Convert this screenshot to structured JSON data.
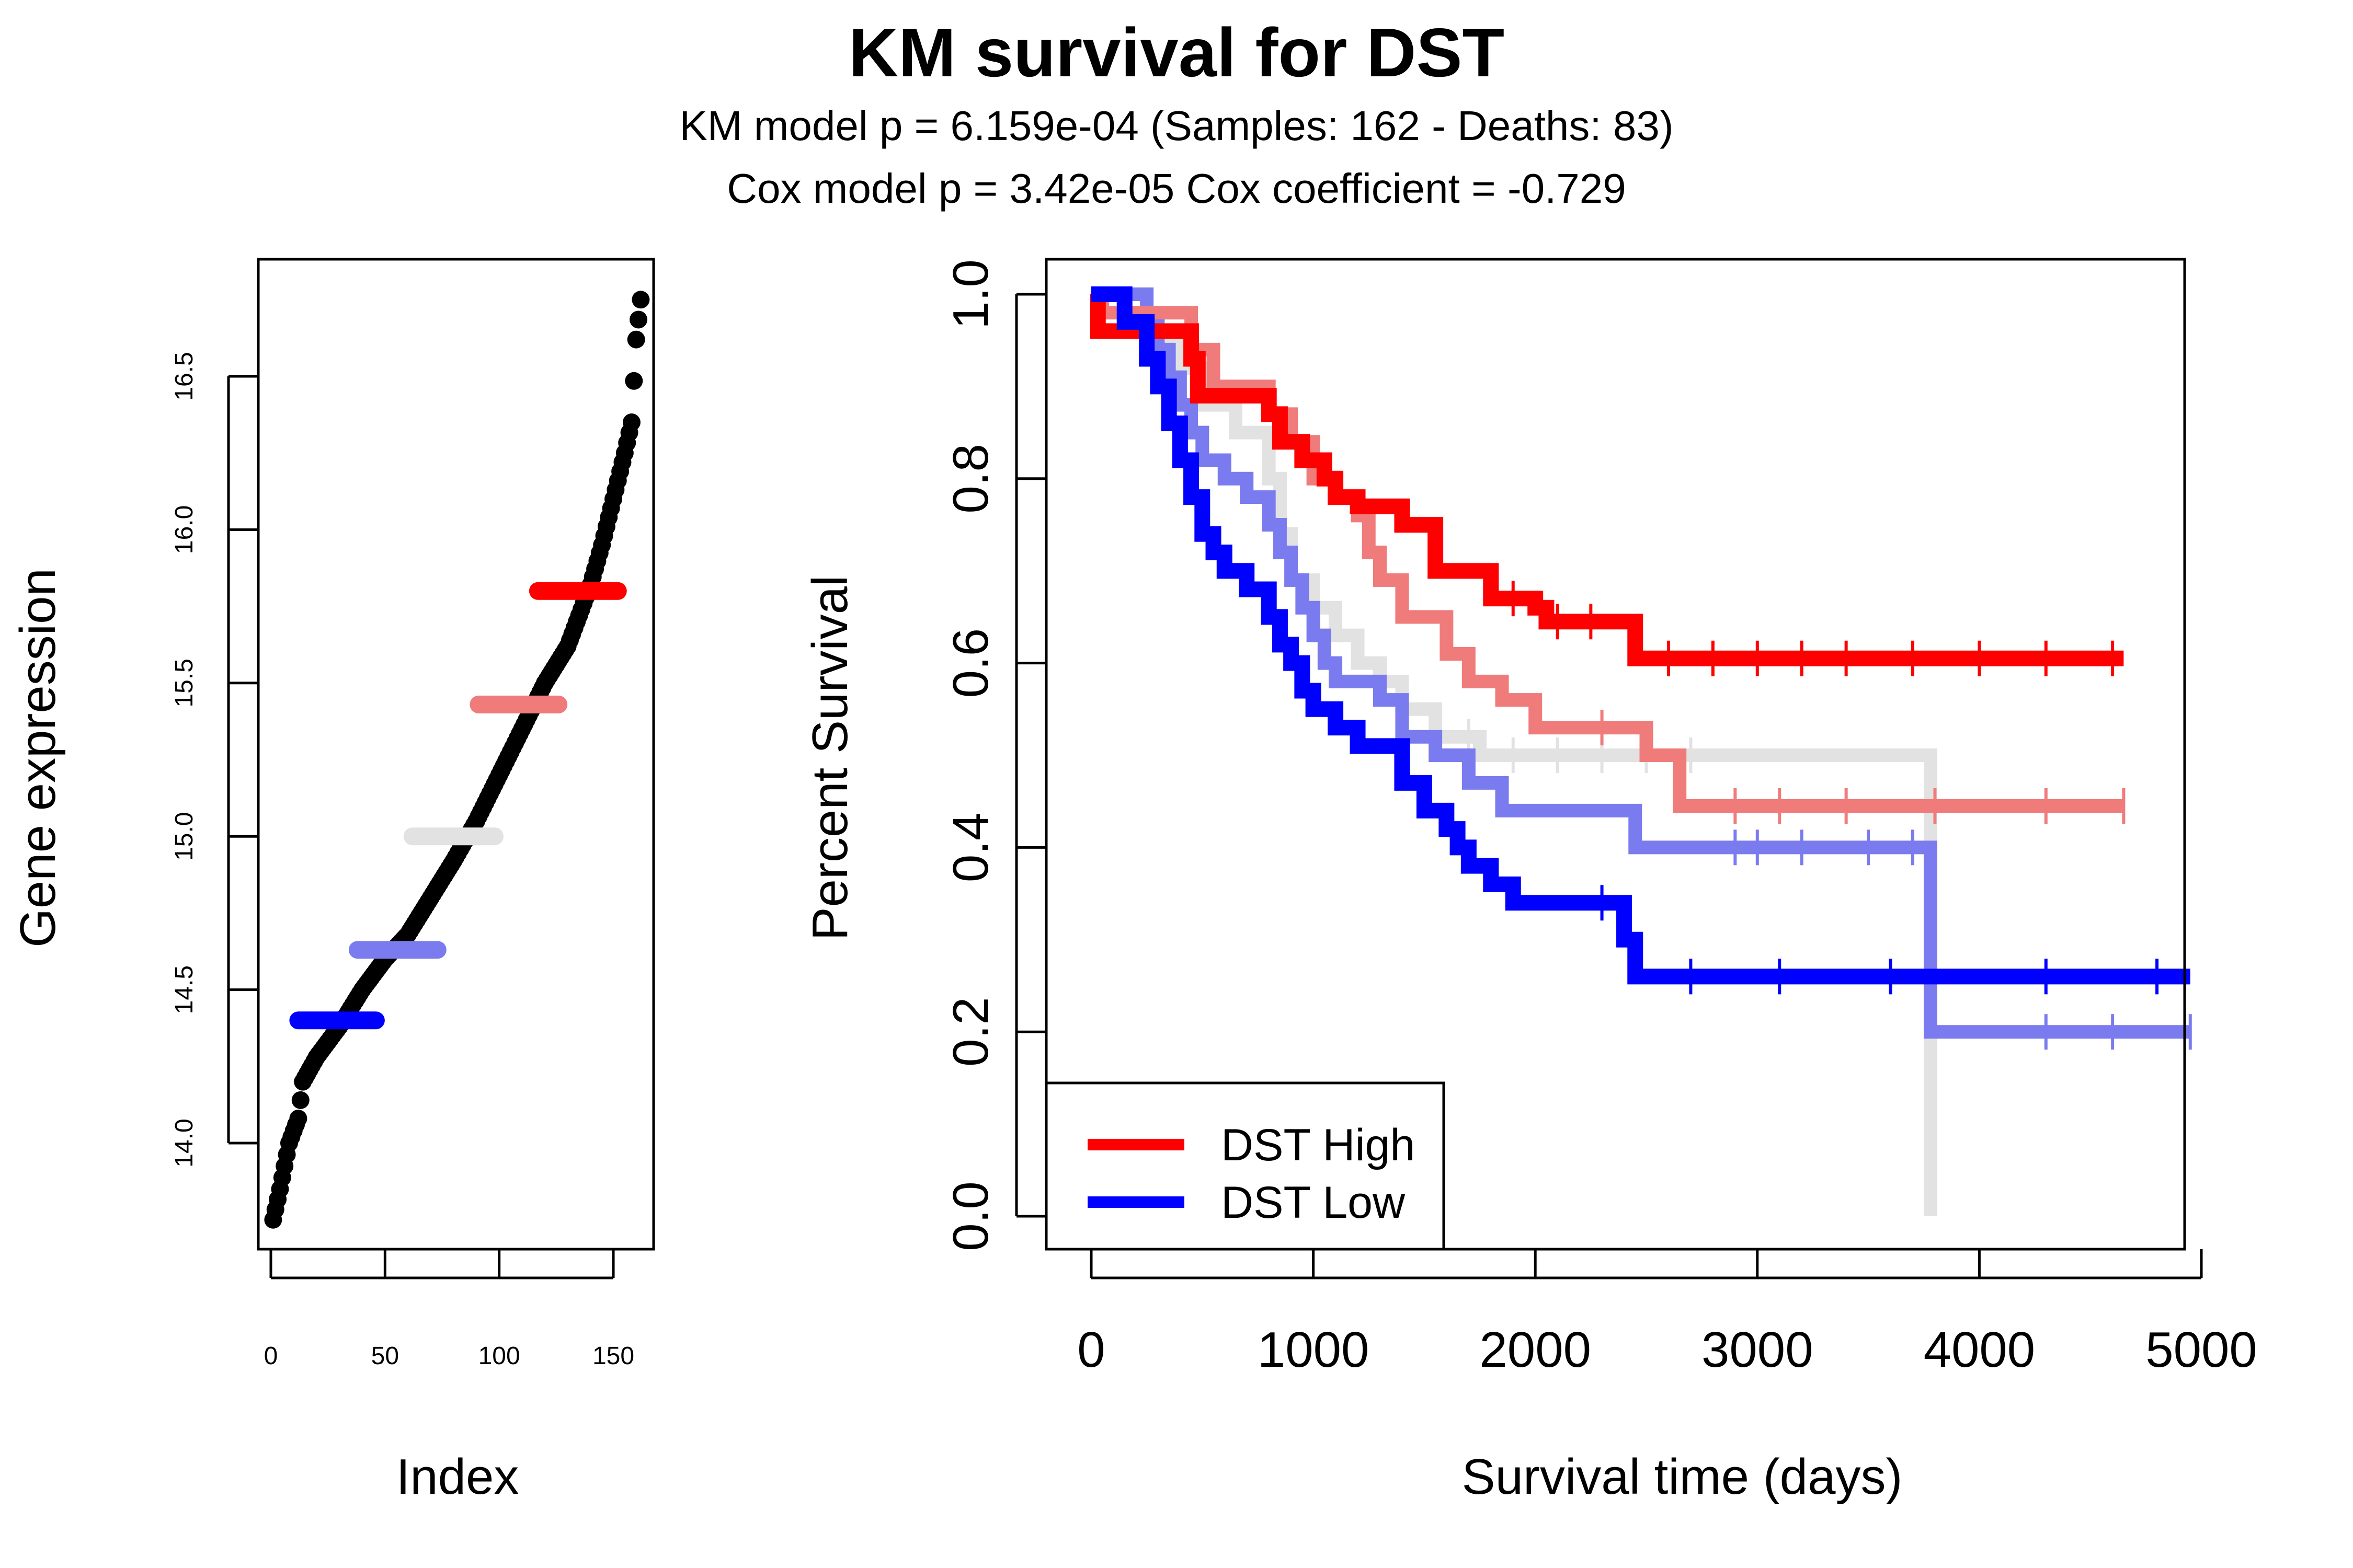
{
  "header": {
    "title": "KM survival for DST",
    "subtitle1": "KM model p = 6.159e-04 (Samples: 162 - Deaths: 83)",
    "subtitle2": "Cox model p = 3.42e-05    Cox coefficient = -0.729"
  },
  "colors": {
    "high": "#ff0000",
    "mid_high": "#f07b7b",
    "mid": "#e2e2e2",
    "mid_low": "#7b7bf0",
    "low": "#0000ff",
    "points": "#000000"
  },
  "chart_data": [
    {
      "type": "scatter",
      "xlabel": "Index",
      "ylabel": "Gene expression",
      "xlim": [
        0,
        162
      ],
      "ylim": [
        13.7,
        16.8
      ],
      "xticks": [
        0,
        50,
        100,
        150
      ],
      "xtick_labels": [
        "0",
        "50",
        "100",
        "150"
      ],
      "yticks": [
        14.0,
        14.5,
        15.0,
        15.5,
        16.0,
        16.5
      ],
      "ytick_labels": [
        "14.0",
        "14.5",
        "15.0",
        "15.5",
        "16.0",
        "16.5"
      ],
      "points": {
        "n": 162,
        "anchors": [
          [
            1,
            13.75
          ],
          [
            4,
            13.85
          ],
          [
            8,
            14.0
          ],
          [
            12,
            14.08
          ],
          [
            14,
            14.2
          ],
          [
            20,
            14.28
          ],
          [
            30,
            14.38
          ],
          [
            40,
            14.5
          ],
          [
            50,
            14.6
          ],
          [
            60,
            14.68
          ],
          [
            70,
            14.8
          ],
          [
            80,
            14.92
          ],
          [
            90,
            15.05
          ],
          [
            100,
            15.2
          ],
          [
            110,
            15.35
          ],
          [
            120,
            15.5
          ],
          [
            130,
            15.62
          ],
          [
            140,
            15.82
          ],
          [
            145,
            15.95
          ],
          [
            150,
            16.1
          ],
          [
            155,
            16.25
          ],
          [
            158,
            16.35
          ],
          [
            160,
            16.62
          ],
          [
            162,
            16.75
          ]
        ]
      },
      "segments": [
        {
          "series": "low",
          "x": [
            12,
            46
          ],
          "y": 14.4
        },
        {
          "series": "mid_low",
          "x": [
            38,
            73
          ],
          "y": 14.63
        },
        {
          "series": "mid",
          "x": [
            62,
            98
          ],
          "y": 15.0
        },
        {
          "series": "mid_high",
          "x": [
            91,
            126
          ],
          "y": 15.43
        },
        {
          "series": "high",
          "x": [
            117,
            152
          ],
          "y": 15.8
        }
      ]
    },
    {
      "type": "line",
      "xlabel": "Survival time (days)",
      "ylabel": "Percent Survival",
      "xlim": [
        0,
        5000
      ],
      "ylim": [
        0,
        1
      ],
      "xticks": [
        0,
        1000,
        2000,
        3000,
        4000,
        5000
      ],
      "xtick_labels": [
        "0",
        "1000",
        "2000",
        "3000",
        "4000",
        "5000"
      ],
      "yticks": [
        0.0,
        0.2,
        0.4,
        0.6,
        0.8,
        1.0
      ],
      "ytick_labels": [
        "0.0",
        "0.2",
        "0.4",
        "0.6",
        "0.8",
        "1.0"
      ],
      "legend": {
        "position": "bottom-left",
        "entries": [
          {
            "label": "DST High",
            "series": "high"
          },
          {
            "label": "DST Low",
            "series": "low"
          }
        ]
      },
      "series": [
        {
          "key": "mid",
          "width": 26,
          "steps": [
            [
              0,
              1.0
            ],
            [
              150,
              0.98
            ],
            [
              300,
              0.95
            ],
            [
              400,
              0.92
            ],
            [
              500,
              0.88
            ],
            [
              650,
              0.85
            ],
            [
              800,
              0.8
            ],
            [
              850,
              0.74
            ],
            [
              900,
              0.69
            ],
            [
              1000,
              0.66
            ],
            [
              1100,
              0.63
            ],
            [
              1200,
              0.6
            ],
            [
              1300,
              0.58
            ],
            [
              1400,
              0.55
            ],
            [
              1550,
              0.52
            ],
            [
              1750,
              0.5
            ],
            [
              3780,
              0.0
            ]
          ],
          "censor": [
            1700,
            1900,
            2100,
            2300,
            2500,
            2700
          ]
        },
        {
          "key": "mid_low",
          "width": 26,
          "steps": [
            [
              0,
              1.0
            ],
            [
              250,
              0.97
            ],
            [
              300,
              0.94
            ],
            [
              350,
              0.91
            ],
            [
              400,
              0.88
            ],
            [
              450,
              0.85
            ],
            [
              500,
              0.82
            ],
            [
              600,
              0.8
            ],
            [
              700,
              0.78
            ],
            [
              800,
              0.75
            ],
            [
              850,
              0.72
            ],
            [
              900,
              0.69
            ],
            [
              950,
              0.66
            ],
            [
              1000,
              0.63
            ],
            [
              1050,
              0.6
            ],
            [
              1100,
              0.58
            ],
            [
              1300,
              0.56
            ],
            [
              1400,
              0.52
            ],
            [
              1550,
              0.5
            ],
            [
              1700,
              0.47
            ],
            [
              1850,
              0.44
            ],
            [
              2450,
              0.4
            ],
            [
              3780,
              0.2
            ],
            [
              4950,
              0.2
            ]
          ],
          "censor": [
            2900,
            3000,
            3200,
            3500,
            3700,
            4300,
            4600,
            4950
          ]
        },
        {
          "key": "mid_high",
          "width": 26,
          "steps": [
            [
              0,
              1.0
            ],
            [
              50,
              0.98
            ],
            [
              450,
              0.94
            ],
            [
              550,
              0.9
            ],
            [
              800,
              0.87
            ],
            [
              900,
              0.84
            ],
            [
              1000,
              0.8
            ],
            [
              1100,
              0.78
            ],
            [
              1200,
              0.76
            ],
            [
              1250,
              0.72
            ],
            [
              1300,
              0.69
            ],
            [
              1400,
              0.65
            ],
            [
              1600,
              0.61
            ],
            [
              1700,
              0.58
            ],
            [
              1850,
              0.56
            ],
            [
              2000,
              0.53
            ],
            [
              2500,
              0.5
            ],
            [
              2650,
              0.445
            ],
            [
              4650,
              0.445
            ]
          ],
          "censor": [
            2300,
            2900,
            3100,
            3400,
            3800,
            4300,
            4650
          ]
        },
        {
          "key": "high",
          "width": 30,
          "steps": [
            [
              0,
              1.0
            ],
            [
              30,
              0.96
            ],
            [
              450,
              0.93
            ],
            [
              480,
              0.89
            ],
            [
              800,
              0.87
            ],
            [
              850,
              0.84
            ],
            [
              950,
              0.82
            ],
            [
              1050,
              0.8
            ],
            [
              1100,
              0.78
            ],
            [
              1200,
              0.77
            ],
            [
              1400,
              0.75
            ],
            [
              1550,
              0.7
            ],
            [
              1800,
              0.67
            ],
            [
              2000,
              0.66
            ],
            [
              2050,
              0.645
            ],
            [
              2450,
              0.605
            ],
            [
              4650,
              0.605
            ]
          ],
          "censor": [
            1900,
            2100,
            2250,
            2600,
            2800,
            3000,
            3200,
            3400,
            3700,
            4000,
            4300,
            4600
          ]
        },
        {
          "key": "low",
          "width": 30,
          "steps": [
            [
              0,
              1.0
            ],
            [
              150,
              0.97
            ],
            [
              250,
              0.93
            ],
            [
              300,
              0.9
            ],
            [
              350,
              0.86
            ],
            [
              400,
              0.82
            ],
            [
              450,
              0.78
            ],
            [
              500,
              0.74
            ],
            [
              550,
              0.72
            ],
            [
              600,
              0.7
            ],
            [
              700,
              0.68
            ],
            [
              800,
              0.65
            ],
            [
              850,
              0.62
            ],
            [
              900,
              0.6
            ],
            [
              950,
              0.57
            ],
            [
              1000,
              0.55
            ],
            [
              1100,
              0.53
            ],
            [
              1200,
              0.51
            ],
            [
              1400,
              0.47
            ],
            [
              1500,
              0.44
            ],
            [
              1600,
              0.42
            ],
            [
              1650,
              0.4
            ],
            [
              1700,
              0.38
            ],
            [
              1800,
              0.36
            ],
            [
              1900,
              0.34
            ],
            [
              2400,
              0.3
            ],
            [
              2450,
              0.26
            ],
            [
              4950,
              0.26
            ]
          ],
          "censor": [
            2300,
            2700,
            3100,
            3600,
            4300,
            4800
          ]
        }
      ]
    }
  ]
}
